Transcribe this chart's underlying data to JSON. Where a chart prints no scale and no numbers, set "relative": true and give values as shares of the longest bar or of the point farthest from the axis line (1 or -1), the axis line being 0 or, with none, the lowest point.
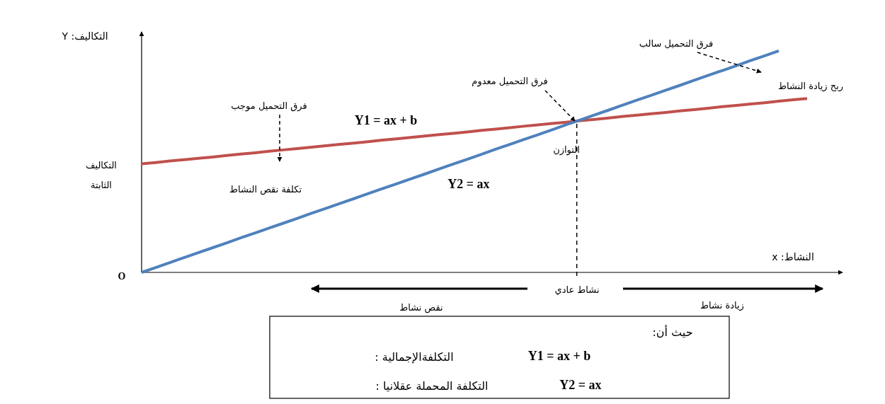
{
  "chart_data": {
    "type": "line",
    "relative": true,
    "xlabel": "النشاط: x",
    "ylabel": "التكاليف: Y",
    "categories": [
      null,
      null,
      null,
      null,
      null,
      null,
      null,
      null,
      null,
      null,
      null,
      null,
      null,
      null,
      null,
      null,
      null,
      null,
      null,
      null,
      null,
      null,
      null,
      null,
      null,
      null,
      null,
      null,
      null,
      null,
      null,
      null,
      null,
      null,
      null,
      null,
      null,
      null,
      null,
      null,
      null,
      null,
      null,
      null,
      null,
      null,
      null,
      null
    ],
    "series": [
      {
        "name": "Y1 = ax + b",
        "color": "#c0504d",
        "values": [
          0.49,
          0.496,
          0.503,
          0.509,
          0.515,
          0.521,
          0.528,
          0.534,
          0.54,
          0.547,
          0.553,
          0.559,
          0.565,
          0.572,
          0.578,
          0.584,
          0.59,
          0.597,
          0.603,
          0.609,
          0.616,
          0.622,
          0.628,
          0.634,
          0.641,
          0.647,
          0.653,
          0.66,
          0.666,
          0.672,
          0.678,
          0.685,
          0.691,
          0.697,
          0.704,
          0.71,
          0.716,
          0.722,
          0.729,
          0.735,
          0.741,
          0.748,
          0.754,
          0.76,
          0.766,
          0.773,
          0.779,
          0.785
        ]
      },
      {
        "name": "Y2 = ax",
        "color": "#4f81bd",
        "values": [
          0,
          0.022,
          0.044,
          0.067,
          0.089,
          0.111,
          0.133,
          0.156,
          0.178,
          0.2,
          0.222,
          0.244,
          0.267,
          0.289,
          0.311,
          0.333,
          0.356,
          0.378,
          0.4,
          0.422,
          0.444,
          0.467,
          0.489,
          0.511,
          0.533,
          0.556,
          0.578,
          0.6,
          0.622,
          0.644,
          0.667,
          0.689,
          0.711,
          0.733,
          0.756,
          0.778,
          0.8,
          0.822,
          0.844,
          0.867,
          0.889,
          0.911,
          0.933,
          0.956,
          0.978,
          1.0,
          null,
          null
        ]
      }
    ],
    "annotations": [
      "O",
      "التكاليف",
      "الثابتة",
      "فرق التحميل موجب",
      "تكلفة نقص النشاط",
      "فرق التحميل معدوم",
      "التوازن",
      "فرق التحميل سالب",
      "ربح زيادة النشاط",
      "نشاط عادي",
      "نقص نشاط",
      "زيادة نشاط",
      "حيث أن:",
      "التكلفةالإجمالية :",
      "Y1 = ax + b",
      "التكلفة المحملة عقلانيا :",
      "Y2 = ax"
    ]
  }
}
